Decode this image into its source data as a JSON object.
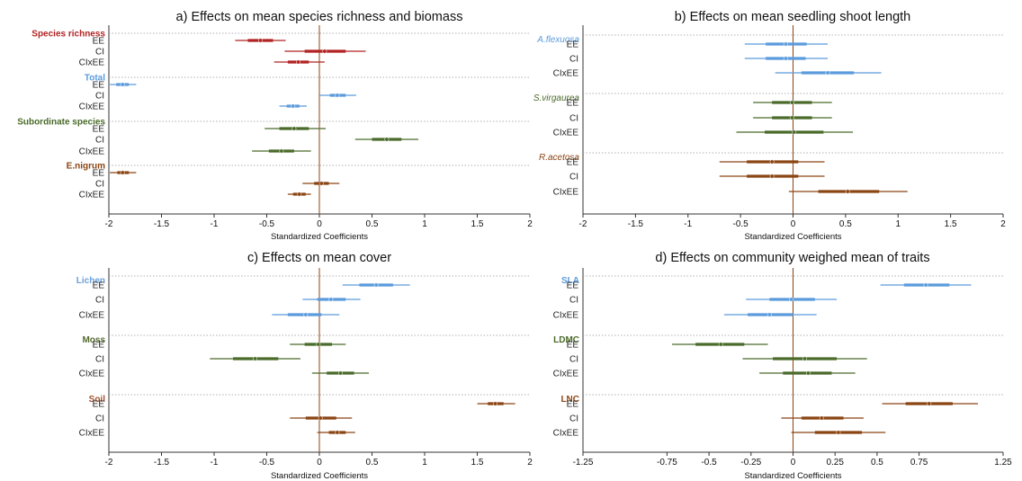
{
  "colors": {
    "red": "#b22222",
    "blue": "#5b9bdc",
    "green": "#4a6b2a",
    "brown": "#8b4513",
    "zero_line": "#8b4513",
    "axis": "#333333",
    "separator": "#999999",
    "lichen_label": "#6a9fd8",
    "moss_label": "#556b2f",
    "soil_label": "#a0522d"
  },
  "chart_data": [
    {
      "id": "a",
      "type": "forest",
      "title": "a) Effects on mean species richness and biomass",
      "xlabel": "Standardized Coefficients",
      "xlim": [
        -2,
        2
      ],
      "xticks": [
        -2,
        -1.5,
        -1,
        -0.5,
        0,
        0.5,
        1,
        1.5,
        2
      ],
      "xtick_labels": [
        "-2",
        "-1.5",
        "-1",
        "-0.5",
        "0",
        "0.5",
        "1",
        "1.5",
        "2"
      ],
      "groups": [
        {
          "label": "Species richness",
          "color": "red",
          "style": "bold",
          "rows": [
            {
              "label": "EE",
              "est": -0.56,
              "lo50": -0.68,
              "hi50": -0.44,
              "lo95": -0.8,
              "hi95": -0.32
            },
            {
              "label": "CI",
              "est": 0.05,
              "lo50": -0.14,
              "hi50": 0.25,
              "lo95": -0.33,
              "hi95": 0.44
            },
            {
              "label": "CIxEE",
              "est": -0.2,
              "lo50": -0.3,
              "hi50": -0.1,
              "lo95": -0.43,
              "hi95": 0.05
            }
          ]
        },
        {
          "label": "Total",
          "color": "blue",
          "style": "bold",
          "rows": [
            {
              "label": "EE",
              "est": -1.87,
              "lo50": -1.93,
              "hi50": -1.81,
              "lo95": -1.99,
              "hi95": -1.74
            },
            {
              "label": "CI",
              "est": 0.17,
              "lo50": 0.1,
              "hi50": 0.25,
              "lo95": 0.0,
              "hi95": 0.35
            },
            {
              "label": "CIxEE",
              "est": -0.25,
              "lo50": -0.31,
              "hi50": -0.19,
              "lo95": -0.38,
              "hi95": -0.12
            }
          ]
        },
        {
          "label": "Subordinate species",
          "color": "green",
          "style": "bold",
          "rows": [
            {
              "label": "EE",
              "est": -0.24,
              "lo50": -0.38,
              "hi50": -0.1,
              "lo95": -0.52,
              "hi95": 0.06
            },
            {
              "label": "CI",
              "est": 0.64,
              "lo50": 0.5,
              "hi50": 0.78,
              "lo95": 0.34,
              "hi95": 0.94
            },
            {
              "label": "CIxEE",
              "est": -0.36,
              "lo50": -0.48,
              "hi50": -0.24,
              "lo95": -0.64,
              "hi95": -0.08
            }
          ]
        },
        {
          "label": "E.nigrum",
          "color": "brown",
          "style": "bold",
          "rows": [
            {
              "label": "EE",
              "est": -1.87,
              "lo50": -1.92,
              "hi50": -1.81,
              "lo95": -1.99,
              "hi95": -1.74
            },
            {
              "label": "CI",
              "est": 0.02,
              "lo50": -0.05,
              "hi50": 0.09,
              "lo95": -0.16,
              "hi95": 0.19
            },
            {
              "label": "CIxEE",
              "est": -0.19,
              "lo50": -0.25,
              "hi50": -0.13,
              "lo95": -0.3,
              "hi95": -0.08
            }
          ]
        }
      ]
    },
    {
      "id": "b",
      "type": "forest",
      "title": "b) Effects on mean seedling shoot length",
      "xlabel": "Standardized Coefficients",
      "xlim": [
        -2,
        2
      ],
      "xticks": [
        -2,
        -1.5,
        -1,
        -0.5,
        0,
        0.5,
        1,
        1.5,
        2
      ],
      "xtick_labels": [
        "-2",
        "-1.5",
        "-1",
        "-0.5",
        "0",
        "0.5",
        "1",
        "1.5",
        "2"
      ],
      "groups": [
        {
          "label": "A.flexuosa",
          "color": "blue",
          "style": "italic",
          "rows": [
            {
              "label": "EE",
              "est": -0.07,
              "lo50": -0.26,
              "hi50": 0.13,
              "lo95": -0.46,
              "hi95": 0.33
            },
            {
              "label": "CI",
              "est": -0.07,
              "lo50": -0.26,
              "hi50": 0.12,
              "lo95": -0.46,
              "hi95": 0.33
            },
            {
              "label": "CIxEE",
              "est": 0.33,
              "lo50": 0.08,
              "hi50": 0.58,
              "lo95": -0.17,
              "hi95": 0.84
            }
          ]
        },
        {
          "label": "S.virgaurea",
          "color": "green",
          "style": "italic",
          "rows": [
            {
              "label": "EE",
              "est": -0.01,
              "lo50": -0.2,
              "hi50": 0.18,
              "lo95": -0.38,
              "hi95": 0.37
            },
            {
              "label": "CI",
              "est": -0.01,
              "lo50": -0.2,
              "hi50": 0.18,
              "lo95": -0.38,
              "hi95": 0.37
            },
            {
              "label": "CIxEE",
              "est": 0.01,
              "lo50": -0.27,
              "hi50": 0.29,
              "lo95": -0.54,
              "hi95": 0.57
            }
          ]
        },
        {
          "label": "R.acetosa",
          "color": "brown",
          "style": "italic",
          "rows": [
            {
              "label": "EE",
              "est": -0.2,
              "lo50": -0.44,
              "hi50": 0.05,
              "lo95": -0.7,
              "hi95": 0.3
            },
            {
              "label": "CI",
              "est": -0.2,
              "lo50": -0.44,
              "hi50": 0.05,
              "lo95": -0.7,
              "hi95": 0.3
            },
            {
              "label": "CIxEE",
              "est": 0.52,
              "lo50": 0.24,
              "hi50": 0.82,
              "lo95": -0.04,
              "hi95": 1.09
            }
          ]
        }
      ]
    },
    {
      "id": "c",
      "type": "forest",
      "title": "c) Effects on mean cover",
      "xlabel": "Standardized Coefficients",
      "xlim": [
        -2,
        2
      ],
      "xticks": [
        -2,
        -1.5,
        -1,
        -0.5,
        0,
        0.5,
        1,
        1.5,
        2
      ],
      "xtick_labels": [
        "-2",
        "-1.5",
        "-1",
        "-0.5",
        "0",
        "0.5",
        "1",
        "1.5",
        "2"
      ],
      "groups": [
        {
          "label": "Lichen",
          "color": "blue",
          "label_color": "lichen_label",
          "style": "bold",
          "rows": [
            {
              "label": "EE",
              "est": 0.54,
              "lo50": 0.38,
              "hi50": 0.7,
              "lo95": 0.22,
              "hi95": 0.86
            },
            {
              "label": "CI",
              "est": 0.11,
              "lo50": -0.02,
              "hi50": 0.25,
              "lo95": -0.16,
              "hi95": 0.39
            },
            {
              "label": "CIxEE",
              "est": -0.13,
              "lo50": -0.3,
              "hi50": 0.02,
              "lo95": -0.45,
              "hi95": 0.19
            }
          ]
        },
        {
          "label": "Moss",
          "color": "green",
          "label_color": "moss_label",
          "style": "bold",
          "rows": [
            {
              "label": "EE",
              "est": -0.01,
              "lo50": -0.14,
              "hi50": 0.12,
              "lo95": -0.28,
              "hi95": 0.25
            },
            {
              "label": "CI",
              "est": -0.61,
              "lo50": -0.82,
              "hi50": -0.39,
              "lo95": -1.04,
              "hi95": -0.18
            }
          ]
        },
        {
          "label": "CIxEE",
          "color": "green",
          "label_color": "moss_label",
          "style": "none",
          "rows": [
            {
              "label": "CIxEE",
              "est": 0.2,
              "lo50": 0.07,
              "hi50": 0.33,
              "lo95": -0.07,
              "hi95": 0.47
            }
          ]
        },
        {
          "label": "Soil",
          "color": "brown",
          "label_color": "soil_label",
          "style": "bold",
          "rows": [
            {
              "label": "EE",
              "est": 1.67,
              "lo50": 1.6,
              "hi50": 1.75,
              "lo95": 1.5,
              "hi95": 1.86
            },
            {
              "label": "CI",
              "est": 0.01,
              "lo50": -0.13,
              "hi50": 0.16,
              "lo95": -0.28,
              "hi95": 0.31
            },
            {
              "label": "CIxEE",
              "est": 0.17,
              "lo50": 0.09,
              "hi50": 0.25,
              "lo95": -0.02,
              "hi95": 0.34
            }
          ]
        }
      ]
    },
    {
      "id": "d",
      "type": "forest",
      "title": "d) Effects on community weighed mean of traits",
      "xlabel": "Standardized Coefficients",
      "xlim": [
        -1.25,
        1.25
      ],
      "xticks": [
        -1.25,
        -0.75,
        -0.5,
        -0.25,
        0,
        0.25,
        0.5,
        0.75,
        1.25
      ],
      "xtick_labels": [
        "-1.25",
        "-0.75",
        "-0.5",
        "-0.25",
        "0",
        "0.25",
        "0.5",
        "0.75",
        "1.25"
      ],
      "groups": [
        {
          "label": "SLA",
          "color": "blue",
          "style": "bold",
          "rows": [
            {
              "label": "EE",
              "est": 0.79,
              "lo50": 0.66,
              "hi50": 0.93,
              "lo95": 0.52,
              "hi95": 1.06
            },
            {
              "label": "CI",
              "est": -0.01,
              "lo50": -0.14,
              "hi50": 0.13,
              "lo95": -0.28,
              "hi95": 0.26
            },
            {
              "label": "CIxEE",
              "est": -0.14,
              "lo50": -0.27,
              "hi50": 0.0,
              "lo95": -0.41,
              "hi95": 0.14
            }
          ]
        },
        {
          "label": "LDMC",
          "color": "green",
          "style": "bold",
          "rows": [
            {
              "label": "EE",
              "est": -0.43,
              "lo50": -0.58,
              "hi50": -0.29,
              "lo95": -0.72,
              "hi95": -0.15
            }
          ]
        },
        {
          "label": "CI",
          "color": "green",
          "style": "none",
          "rows": [
            {
              "label": "CI",
              "est": 0.07,
              "lo50": -0.12,
              "hi50": 0.26,
              "lo95": -0.3,
              "hi95": 0.44
            },
            {
              "label": "CIxEE",
              "est": 0.09,
              "lo50": -0.06,
              "hi50": 0.23,
              "lo95": -0.2,
              "hi95": 0.37
            }
          ]
        },
        {
          "label": "LNC",
          "color": "brown",
          "style": "bold",
          "rows": [
            {
              "label": "EE",
              "est": 0.81,
              "lo50": 0.67,
              "hi50": 0.95,
              "lo95": 0.53,
              "hi95": 1.1
            },
            {
              "label": "CI",
              "est": 0.17,
              "lo50": 0.05,
              "hi50": 0.3,
              "lo95": -0.07,
              "hi95": 0.42
            },
            {
              "label": "CIxEE",
              "est": 0.27,
              "lo50": 0.13,
              "hi50": 0.41,
              "lo95": -0.01,
              "hi95": 0.55
            }
          ]
        }
      ]
    }
  ]
}
